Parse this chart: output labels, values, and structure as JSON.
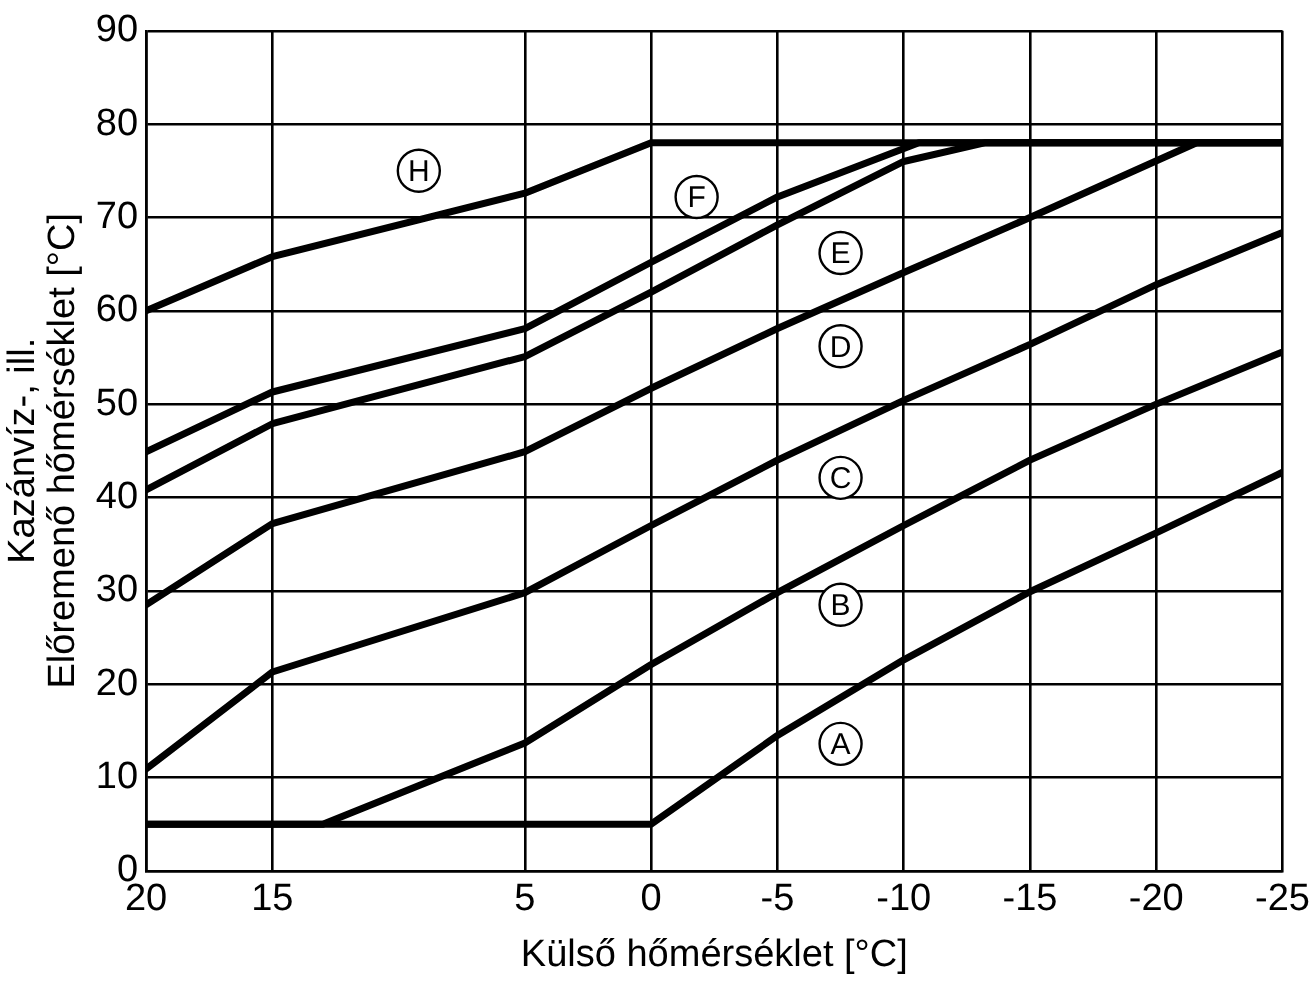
{
  "chart_data": {
    "type": "line",
    "xlabel": "Külső hőmérséklet [°C]",
    "ylabel": "Kazánvíz-, ill.\nElőremenő hőmérséklet [°C]",
    "xlim": [
      20,
      -25
    ],
    "xticks": [
      20,
      15,
      5,
      0,
      -5,
      -10,
      -15,
      -20,
      -25
    ],
    "ylim": [
      0,
      90
    ],
    "yticks": [
      0,
      10,
      20,
      30,
      40,
      50,
      60,
      70,
      80,
      90
    ],
    "grid": true,
    "legend": false,
    "marker": "none",
    "line_style": "solid",
    "series": [
      {
        "color": "#000000",
        "x": [
          20,
          15,
          5,
          0,
          -25
        ],
        "values": [
          60,
          65.8,
          72.6,
          78,
          78
        ]
      },
      {
        "color": "#000000",
        "x": [
          20,
          15,
          5,
          0,
          -5,
          -10.6,
          -25
        ],
        "values": [
          44.9,
          51.3,
          58.1,
          65.2,
          72.2,
          78,
          78
        ]
      },
      {
        "color": "#000000",
        "x": [
          20,
          15,
          5,
          0,
          -5,
          -10,
          -13.2,
          -25
        ],
        "values": [
          40.8,
          47.9,
          55.1,
          62,
          69.2,
          76,
          78,
          78
        ]
      },
      {
        "color": "#000000",
        "x": [
          20,
          15,
          5,
          0,
          -5,
          -10,
          -15,
          -21.6,
          -25
        ],
        "values": [
          28.5,
          37.2,
          44.9,
          51.7,
          58.1,
          64.1,
          70,
          78,
          78
        ]
      },
      {
        "color": "#000000",
        "x": [
          20,
          15,
          5,
          0,
          -5,
          -10,
          -15,
          -20,
          -25
        ],
        "values": [
          10.9,
          21.3,
          29.8,
          37,
          44,
          50.4,
          56.4,
          62.8,
          68.4
        ]
      },
      {
        "color": "#000000",
        "x": [
          20,
          13,
          5,
          0,
          -5,
          -10,
          -15,
          -20,
          -25
        ],
        "values": [
          5,
          5,
          13.7,
          22.1,
          29.8,
          37,
          44,
          50,
          55.6
        ]
      },
      {
        "color": "#000000",
        "x": [
          20,
          0,
          -5,
          -10,
          -15,
          -20,
          -25
        ],
        "values": [
          5,
          5,
          14.5,
          22.6,
          29.9,
          36.2,
          42.7
        ]
      }
    ],
    "annotations": [
      {
        "text": "H",
        "x": 9.2,
        "y": 75
      },
      {
        "text": "F",
        "x": -1.8,
        "y": 72.2
      },
      {
        "text": "E",
        "x": -7.5,
        "y": 66.2
      },
      {
        "text": "D",
        "x": -7.5,
        "y": 56.2
      },
      {
        "text": "C",
        "x": -7.5,
        "y": 42.1
      },
      {
        "text": "B",
        "x": -7.5,
        "y": 28.5
      },
      {
        "text": "A",
        "x": -7.5,
        "y": 13.6
      }
    ]
  }
}
